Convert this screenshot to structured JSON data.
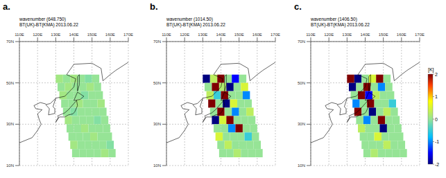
{
  "chart_data": [
    {
      "type": "heatmap",
      "panel_label": "a.",
      "title": "wavenumber (648.750)",
      "subtitle": "BT(UK)-BT(KMA)  2013.06.22",
      "grid": true,
      "xlim": [
        110,
        170
      ],
      "xticks": [
        {
          "value": 110,
          "label": "110E"
        },
        {
          "value": 120,
          "label": "120E"
        },
        {
          "value": 130,
          "label": "130E"
        },
        {
          "value": 140,
          "label": "140E"
        },
        {
          "value": 150,
          "label": "150E"
        },
        {
          "value": 160,
          "label": "160E"
        },
        {
          "value": 170,
          "label": "170E"
        }
      ],
      "ylim": [
        10,
        70
      ],
      "yticks": [
        {
          "value": 10,
          "label": "10N"
        },
        {
          "value": 30,
          "label": "30N"
        },
        {
          "value": 50,
          "label": "50N"
        },
        {
          "value": 70,
          "label": "70N"
        }
      ],
      "cells": [
        [
          132,
          52,
          0.1
        ],
        [
          136,
          52,
          0
        ],
        [
          140,
          52,
          0.1
        ],
        [
          144,
          52,
          0
        ],
        [
          148,
          52,
          -0.1
        ],
        [
          152,
          52,
          0
        ],
        [
          133,
          48,
          0
        ],
        [
          137,
          48,
          0.1
        ],
        [
          141,
          48,
          0
        ],
        [
          145,
          48,
          0
        ],
        [
          149,
          48,
          0.1
        ],
        [
          153,
          48,
          0
        ],
        [
          134,
          44,
          0.1
        ],
        [
          138,
          44,
          0
        ],
        [
          142,
          44,
          0
        ],
        [
          146,
          44,
          -0.1
        ],
        [
          150,
          44,
          0
        ],
        [
          154,
          44,
          0
        ],
        [
          135,
          40,
          0
        ],
        [
          139,
          40,
          0
        ],
        [
          143,
          40,
          0.1
        ],
        [
          147,
          40,
          0
        ],
        [
          151,
          40,
          0
        ],
        [
          155,
          40,
          0.1
        ],
        [
          136,
          36,
          0
        ],
        [
          140,
          36,
          -0.1
        ],
        [
          144,
          36,
          0
        ],
        [
          148,
          36,
          0
        ],
        [
          152,
          36,
          0
        ],
        [
          156,
          36,
          0
        ],
        [
          137,
          32,
          0.1
        ],
        [
          141,
          32,
          0
        ],
        [
          145,
          32,
          0
        ],
        [
          149,
          32,
          0
        ],
        [
          153,
          32,
          -0.1
        ],
        [
          157,
          32,
          0
        ],
        [
          138,
          28,
          0
        ],
        [
          142,
          28,
          0
        ],
        [
          146,
          28,
          0.1
        ],
        [
          150,
          28,
          0
        ],
        [
          154,
          28,
          0
        ],
        [
          158,
          28,
          0
        ],
        [
          139,
          24,
          0
        ],
        [
          143,
          24,
          0
        ],
        [
          147,
          24,
          0
        ],
        [
          151,
          24,
          0.1
        ],
        [
          155,
          24,
          0
        ],
        [
          159,
          24,
          0
        ],
        [
          140,
          20,
          0.1
        ],
        [
          144,
          20,
          0
        ],
        [
          148,
          20,
          0
        ],
        [
          152,
          20,
          0
        ],
        [
          156,
          20,
          0
        ],
        [
          160,
          20,
          -0.1
        ],
        [
          141,
          16,
          0
        ],
        [
          145,
          16,
          0
        ],
        [
          149,
          16,
          0
        ],
        [
          153,
          16,
          0
        ],
        [
          157,
          16,
          0.1
        ],
        [
          161,
          16,
          0
        ]
      ]
    },
    {
      "type": "heatmap",
      "panel_label": "b.",
      "title": "wavenumber (1014.50)",
      "subtitle": "BT(UK)-BT(KMA)  2013.06.22",
      "grid": true,
      "xlim": [
        110,
        170
      ],
      "xticks": [
        {
          "value": 110,
          "label": "110E"
        },
        {
          "value": 120,
          "label": "120E"
        },
        {
          "value": 130,
          "label": "130E"
        },
        {
          "value": 140,
          "label": "140E"
        },
        {
          "value": 150,
          "label": "150E"
        },
        {
          "value": 160,
          "label": "160E"
        },
        {
          "value": 170,
          "label": "170E"
        }
      ],
      "ylim": [
        10,
        70
      ],
      "yticks": [
        {
          "value": 10,
          "label": "10N"
        },
        {
          "value": 30,
          "label": "30N"
        },
        {
          "value": 50,
          "label": "50N"
        },
        {
          "value": 70,
          "label": "70N"
        }
      ],
      "cells": [
        [
          132,
          52,
          -2
        ],
        [
          136,
          52,
          0.3
        ],
        [
          140,
          52,
          2
        ],
        [
          144,
          52,
          0
        ],
        [
          148,
          52,
          -1.5
        ],
        [
          152,
          52,
          0
        ],
        [
          133,
          48,
          0
        ],
        [
          137,
          48,
          2
        ],
        [
          141,
          48,
          0.2
        ],
        [
          145,
          48,
          -2
        ],
        [
          149,
          48,
          0
        ],
        [
          153,
          48,
          0.5
        ],
        [
          134,
          44,
          0.3
        ],
        [
          138,
          44,
          -0.5
        ],
        [
          142,
          44,
          2
        ],
        [
          146,
          44,
          0
        ],
        [
          150,
          44,
          0
        ],
        [
          154,
          44,
          -1
        ],
        [
          135,
          40,
          2
        ],
        [
          139,
          40,
          0
        ],
        [
          143,
          40,
          -2
        ],
        [
          147,
          40,
          0.5
        ],
        [
          151,
          40,
          0
        ],
        [
          155,
          40,
          0
        ],
        [
          136,
          36,
          0
        ],
        [
          140,
          36,
          2
        ],
        [
          144,
          36,
          0
        ],
        [
          148,
          36,
          -1
        ],
        [
          152,
          36,
          0
        ],
        [
          156,
          36,
          0.3
        ],
        [
          137,
          32,
          -2
        ],
        [
          141,
          32,
          0.5
        ],
        [
          145,
          32,
          2
        ],
        [
          149,
          32,
          0
        ],
        [
          153,
          32,
          0
        ],
        [
          157,
          32,
          0
        ],
        [
          138,
          28,
          0
        ],
        [
          142,
          28,
          0
        ],
        [
          146,
          28,
          -1
        ],
        [
          150,
          28,
          2
        ],
        [
          154,
          28,
          0
        ],
        [
          158,
          28,
          0
        ],
        [
          139,
          24,
          0.5
        ],
        [
          143,
          24,
          0
        ],
        [
          147,
          24,
          0
        ],
        [
          151,
          24,
          0
        ],
        [
          155,
          24,
          -0.5
        ],
        [
          159,
          24,
          0
        ],
        [
          140,
          20,
          0
        ],
        [
          144,
          20,
          0.3
        ],
        [
          148,
          20,
          0
        ],
        [
          152,
          20,
          0
        ],
        [
          156,
          20,
          0
        ],
        [
          160,
          20,
          0
        ],
        [
          141,
          16,
          0
        ],
        [
          145,
          16,
          0
        ],
        [
          149,
          16,
          0.2
        ],
        [
          153,
          16,
          0
        ],
        [
          157,
          16,
          0
        ],
        [
          161,
          16,
          0
        ]
      ]
    },
    {
      "type": "heatmap",
      "panel_label": "c.",
      "title": "wavenumber (1406.50)",
      "subtitle": "BT(UK)-BT(KMA)  2013.06.22",
      "grid": true,
      "xlim": [
        110,
        170
      ],
      "xticks": [
        {
          "value": 110,
          "label": "110E"
        },
        {
          "value": 120,
          "label": "120E"
        },
        {
          "value": 130,
          "label": "130E"
        },
        {
          "value": 140,
          "label": "140E"
        },
        {
          "value": 150,
          "label": "150E"
        },
        {
          "value": 160,
          "label": "160E"
        },
        {
          "value": 170,
          "label": "170E"
        }
      ],
      "ylim": [
        10,
        70
      ],
      "yticks": [
        {
          "value": 10,
          "label": "10N"
        },
        {
          "value": 30,
          "label": "30N"
        },
        {
          "value": 50,
          "label": "50N"
        },
        {
          "value": 70,
          "label": "70N"
        }
      ],
      "cells": [
        [
          132,
          52,
          2
        ],
        [
          136,
          52,
          -2
        ],
        [
          140,
          52,
          0
        ],
        [
          144,
          52,
          0.5
        ],
        [
          148,
          52,
          2
        ],
        [
          152,
          52,
          0
        ],
        [
          133,
          48,
          -2
        ],
        [
          137,
          48,
          0
        ],
        [
          141,
          48,
          2
        ],
        [
          145,
          48,
          0
        ],
        [
          149,
          48,
          -1
        ],
        [
          153,
          48,
          0
        ],
        [
          134,
          44,
          0
        ],
        [
          138,
          44,
          2
        ],
        [
          142,
          44,
          -1.5
        ],
        [
          146,
          44,
          0.3
        ],
        [
          150,
          44,
          0
        ],
        [
          154,
          44,
          0
        ],
        [
          135,
          40,
          -1
        ],
        [
          139,
          40,
          0
        ],
        [
          143,
          40,
          2
        ],
        [
          147,
          40,
          0
        ],
        [
          151,
          40,
          0
        ],
        [
          155,
          40,
          -0.5
        ],
        [
          136,
          36,
          2
        ],
        [
          140,
          36,
          0
        ],
        [
          144,
          36,
          -2
        ],
        [
          148,
          36,
          0
        ],
        [
          152,
          36,
          0.3
        ],
        [
          156,
          36,
          0
        ],
        [
          137,
          32,
          0
        ],
        [
          141,
          32,
          -1
        ],
        [
          145,
          32,
          0
        ],
        [
          149,
          32,
          2
        ],
        [
          153,
          32,
          0
        ],
        [
          157,
          32,
          0
        ],
        [
          138,
          28,
          0.3
        ],
        [
          142,
          28,
          0
        ],
        [
          146,
          28,
          0
        ],
        [
          150,
          28,
          -2
        ],
        [
          154,
          28,
          0
        ],
        [
          158,
          28,
          0
        ],
        [
          139,
          24,
          0
        ],
        [
          143,
          24,
          0
        ],
        [
          147,
          24,
          0.5
        ],
        [
          151,
          24,
          0
        ],
        [
          155,
          24,
          0
        ],
        [
          159,
          24,
          0
        ],
        [
          140,
          20,
          0
        ],
        [
          144,
          20,
          0
        ],
        [
          148,
          20,
          0
        ],
        [
          152,
          20,
          0.3
        ],
        [
          156,
          20,
          0
        ],
        [
          160,
          20,
          0
        ],
        [
          141,
          16,
          0
        ],
        [
          145,
          16,
          0.2
        ],
        [
          149,
          16,
          0
        ],
        [
          153,
          16,
          0
        ],
        [
          157,
          16,
          0
        ],
        [
          161,
          16,
          0
        ]
      ],
      "colorbar": {
        "range": [
          -2,
          2
        ],
        "ticks": [
          -2,
          -1,
          0,
          1,
          2
        ],
        "label": "[K]"
      }
    }
  ]
}
